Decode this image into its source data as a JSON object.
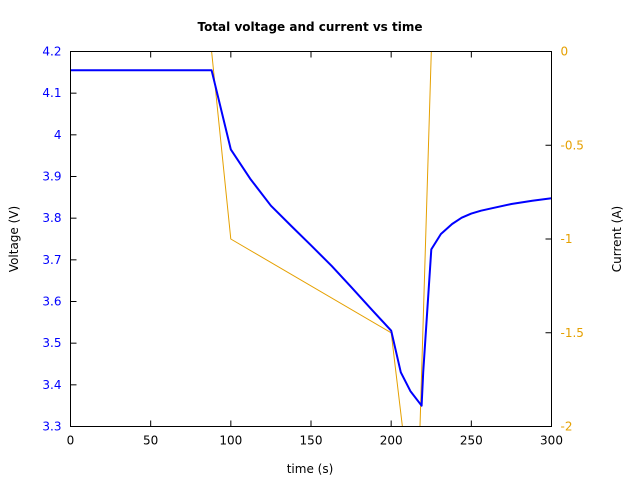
{
  "chart_data": {
    "type": "line",
    "title": "Total voltage and current vs time",
    "xlabel": "time (s)",
    "ylabel": "Voltage (V)",
    "y2label": "Current (A)",
    "xlim": [
      0,
      300
    ],
    "ylim": [
      3.3,
      4.2
    ],
    "y2lim": [
      -2,
      0
    ],
    "xticks": [
      "0",
      "50",
      "100",
      "150",
      "200",
      "250",
      "300"
    ],
    "yticks": [
      "3.3",
      "3.4",
      "3.5",
      "3.6",
      "3.7",
      "3.8",
      "3.9",
      "4",
      "4.1",
      "4.2"
    ],
    "y2ticks": [
      "-2",
      "-1.5",
      "-1",
      "-0.5",
      "0"
    ],
    "grid": false,
    "series": [
      {
        "name": "Voltage",
        "axis": "left",
        "color": "#0000ff",
        "x": [
          0,
          88,
          100,
          112,
          125,
          138,
          150,
          163,
          175,
          188,
          200,
          206,
          212,
          219,
          220,
          225,
          231,
          238,
          244,
          250,
          256,
          263,
          275,
          288,
          300
        ],
        "values": [
          4.155,
          4.155,
          3.965,
          3.895,
          3.83,
          3.78,
          3.735,
          3.685,
          3.635,
          3.58,
          3.53,
          3.43,
          3.385,
          3.35,
          3.43,
          3.725,
          3.762,
          3.786,
          3.801,
          3.811,
          3.818,
          3.824,
          3.834,
          3.842,
          3.848
        ]
      },
      {
        "name": "Current",
        "axis": "right",
        "color": "#e5a000",
        "x": [
          88,
          100,
          200,
          207,
          218,
          225
        ],
        "values": [
          0,
          -1.0,
          -1.5,
          -2.0,
          -2.0,
          0
        ]
      }
    ]
  }
}
